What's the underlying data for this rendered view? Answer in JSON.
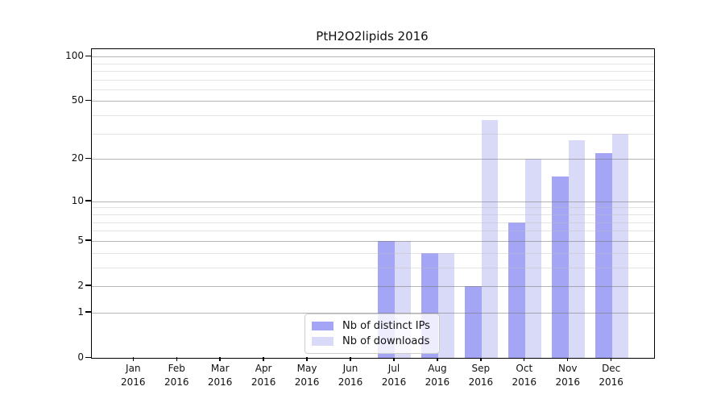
{
  "title": "PtH2O2lipids 2016",
  "chart_data": {
    "type": "bar",
    "title": "PtH2O2lipids 2016",
    "categories": [
      "Jan 2016",
      "Feb 2016",
      "Mar 2016",
      "Apr 2016",
      "May 2016",
      "Jun 2016",
      "Jul 2016",
      "Aug 2016",
      "Sep 2016",
      "Oct 2016",
      "Nov 2016",
      "Dec 2016"
    ],
    "series": [
      {
        "name": "Nb of distinct IPs",
        "color": "#a5a5f5",
        "values": [
          0,
          0,
          0,
          0,
          0,
          0,
          5,
          4,
          2,
          7,
          15,
          22
        ]
      },
      {
        "name": "Nb of downloads",
        "color": "#d9d9f8",
        "values": [
          0,
          0,
          0,
          0,
          0,
          0,
          5,
          4,
          37,
          20,
          27,
          30
        ]
      }
    ],
    "xlabel": "",
    "ylabel": "",
    "y_axis": {
      "scale": "log1p",
      "ticks": [
        0,
        1,
        2,
        5,
        10,
        20,
        50,
        100
      ],
      "minor_ticks": [
        3,
        4,
        6,
        7,
        8,
        9,
        30,
        40,
        60,
        70,
        80,
        90
      ],
      "max_display": 112,
      "ylim": [
        0,
        112
      ]
    },
    "grid": "on",
    "legend_position": "lower center-left inside plot"
  }
}
